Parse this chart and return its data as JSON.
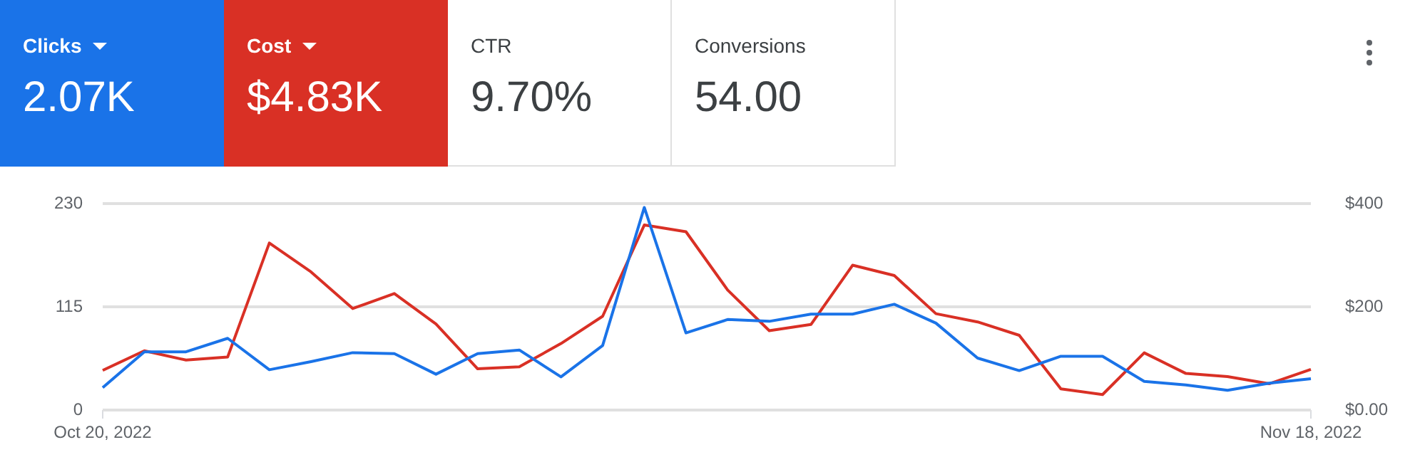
{
  "chart_data": {
    "type": "line",
    "categories": [
      "Oct 20, 2022",
      null,
      null,
      null,
      null,
      null,
      null,
      null,
      null,
      null,
      null,
      null,
      null,
      null,
      null,
      null,
      null,
      null,
      null,
      null,
      null,
      null,
      null,
      null,
      null,
      null,
      null,
      null,
      null,
      "Nov 18, 2022"
    ],
    "series": [
      {
        "color": "#1a73e8",
        "values": [
          25,
          65,
          65,
          80,
          45,
          54,
          64,
          63,
          40,
          63,
          67,
          37,
          72,
          226,
          86,
          101,
          99,
          107,
          107,
          118,
          97,
          58,
          44,
          60,
          60,
          32,
          28,
          22,
          30,
          35
        ]
      },
      {
        "color": "#d93025",
        "axis": "y2",
        "values": [
          77,
          115,
          97,
          103,
          324,
          268,
          197,
          226,
          167,
          80,
          84,
          129,
          182,
          359,
          346,
          233,
          154,
          166,
          281,
          261,
          187,
          171,
          145,
          41,
          30,
          111,
          71,
          65,
          51,
          79
        ]
      }
    ],
    "annotations": [
      "Clicks",
      "2.07K",
      "Cost",
      "$4.83K",
      "CTR",
      "9.70%",
      "Conversions",
      "54.00"
    ],
    "ylim": [
      0,
      230
    ],
    "yticks": [
      0,
      115,
      230
    ],
    "y2lim": [
      0,
      400
    ],
    "y2ticks": [
      {
        "value": 0,
        "label": "$0.00"
      },
      {
        "value": 200,
        "label": "$200"
      },
      {
        "value": 400,
        "label": "$400"
      }
    ],
    "grid": "y",
    "marker": "none",
    "line_style": "solid"
  }
}
